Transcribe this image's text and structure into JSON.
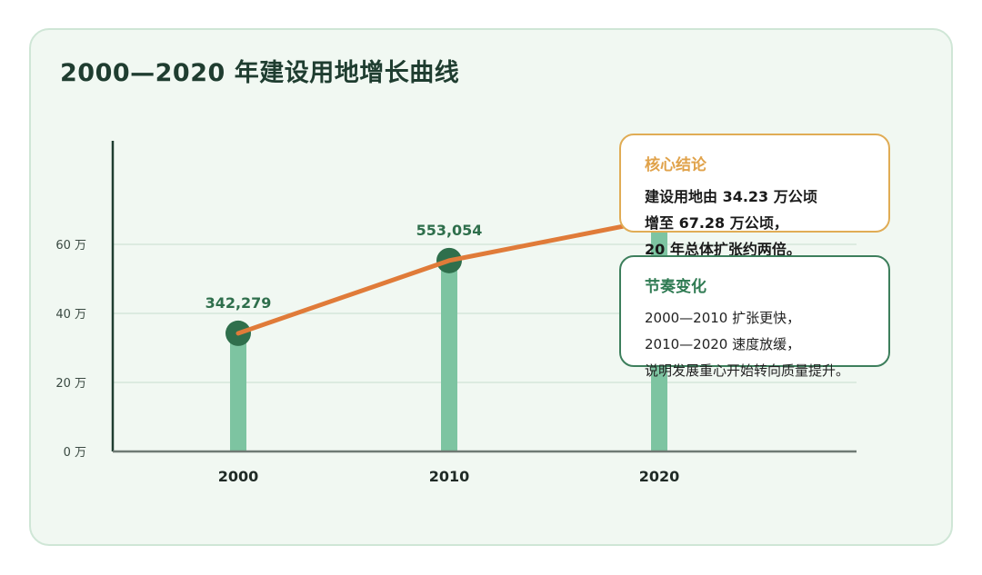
{
  "card": {
    "title": "2000—2020 年建设用地增长曲线"
  },
  "colors": {
    "bar": "#7dc4a1",
    "marker": "#2f6f4c",
    "line": "#e07b39",
    "axis": "#1f3d30",
    "grid": "#cfe3d6",
    "value_label": "#2f6f4c",
    "tick_label": "#3a4a42"
  },
  "chart_data": {
    "type": "bar",
    "title": "2000—2020 年建设用地增长曲线",
    "xlabel": "",
    "ylabel": "",
    "categories": [
      "2000",
      "2010",
      "2020"
    ],
    "values": [
      342279,
      553054,
      672800
    ],
    "value_labels": [
      "342,279",
      "553,054",
      ""
    ],
    "line_overlay": true,
    "ylim": [
      0,
      900000
    ],
    "yticks": [
      0,
      200000,
      400000,
      600000
    ],
    "ytick_labels": [
      "0 万",
      "20 万",
      "40 万",
      "60 万"
    ],
    "grid": true,
    "legend": "none"
  },
  "notes": {
    "core": {
      "heading": "核心结论",
      "lines": [
        "建设用地由 34.23 万公顷",
        "增至 67.28 万公顷，",
        "20 年总体扩张约两倍。"
      ]
    },
    "rhythm": {
      "heading": "节奏变化",
      "lines": [
        "2000—2010 扩张更快，",
        "2010—2020 速度放缓，",
        "说明发展重心开始转向质量提升。"
      ]
    }
  }
}
